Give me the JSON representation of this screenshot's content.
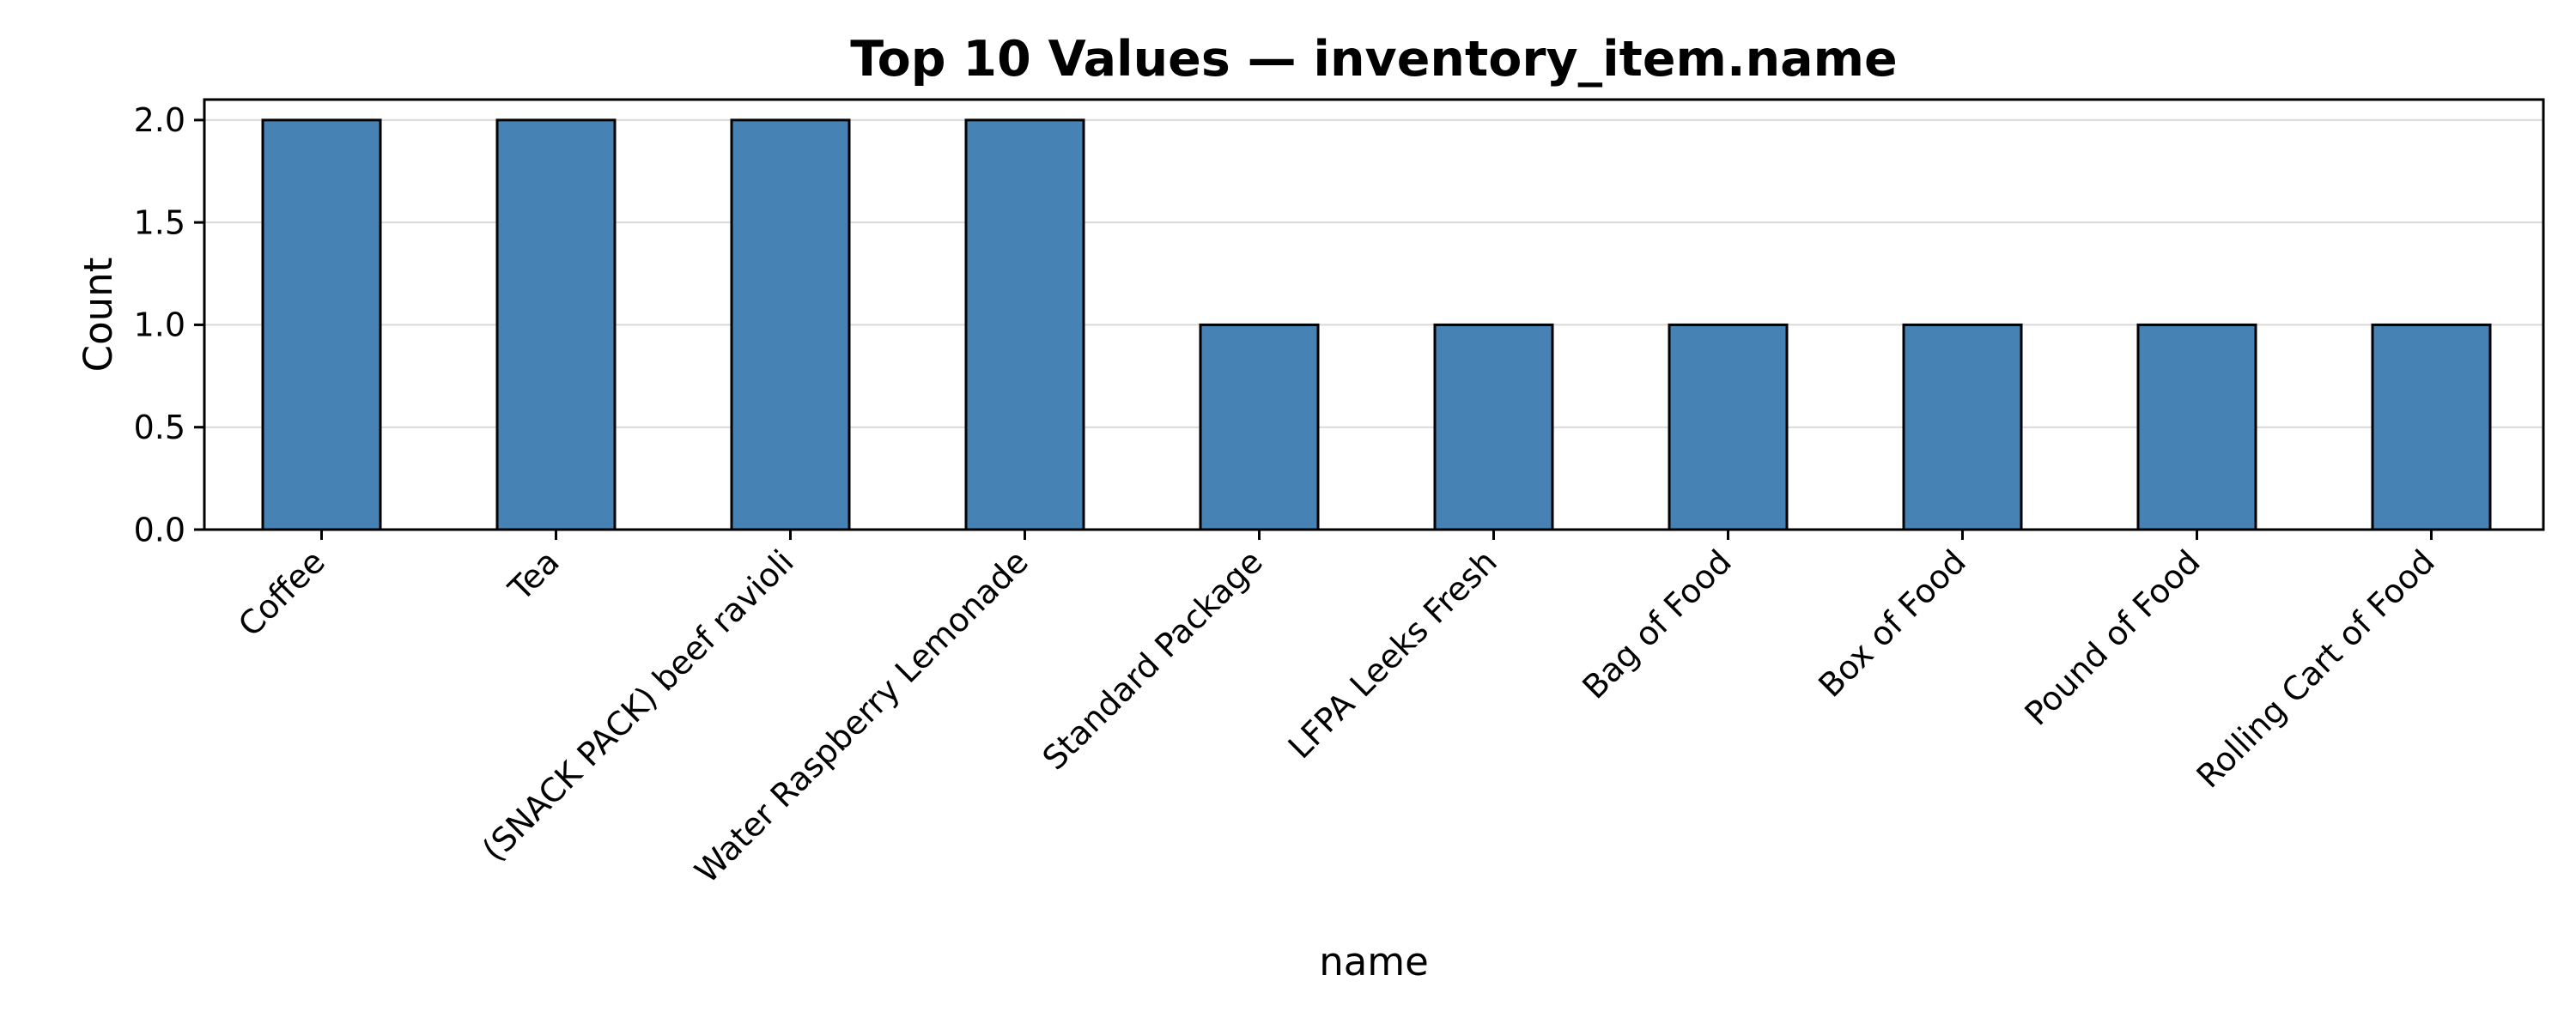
{
  "chart_data": {
    "type": "bar",
    "title": "Top 10 Values — inventory_item.name",
    "xlabel": "name",
    "ylabel": "Count",
    "categories": [
      "Coffee",
      "Tea",
      "(SNACK PACK) beef ravioli",
      "Water Raspberry Lemonade",
      "Standard Package",
      "LFPA Leeks Fresh",
      "Bag of Food",
      "Box of Food",
      "Pound of Food",
      "Rolling Cart of Food"
    ],
    "values": [
      2,
      2,
      2,
      2,
      1,
      1,
      1,
      1,
      1,
      1
    ],
    "ylim": [
      0,
      2.1
    ],
    "yticks": [
      "0.0",
      "0.5",
      "1.0",
      "1.5",
      "2.0"
    ],
    "grid": "y",
    "legend": "none",
    "bar_color": "#4682b4",
    "edge_color": "#000000"
  }
}
